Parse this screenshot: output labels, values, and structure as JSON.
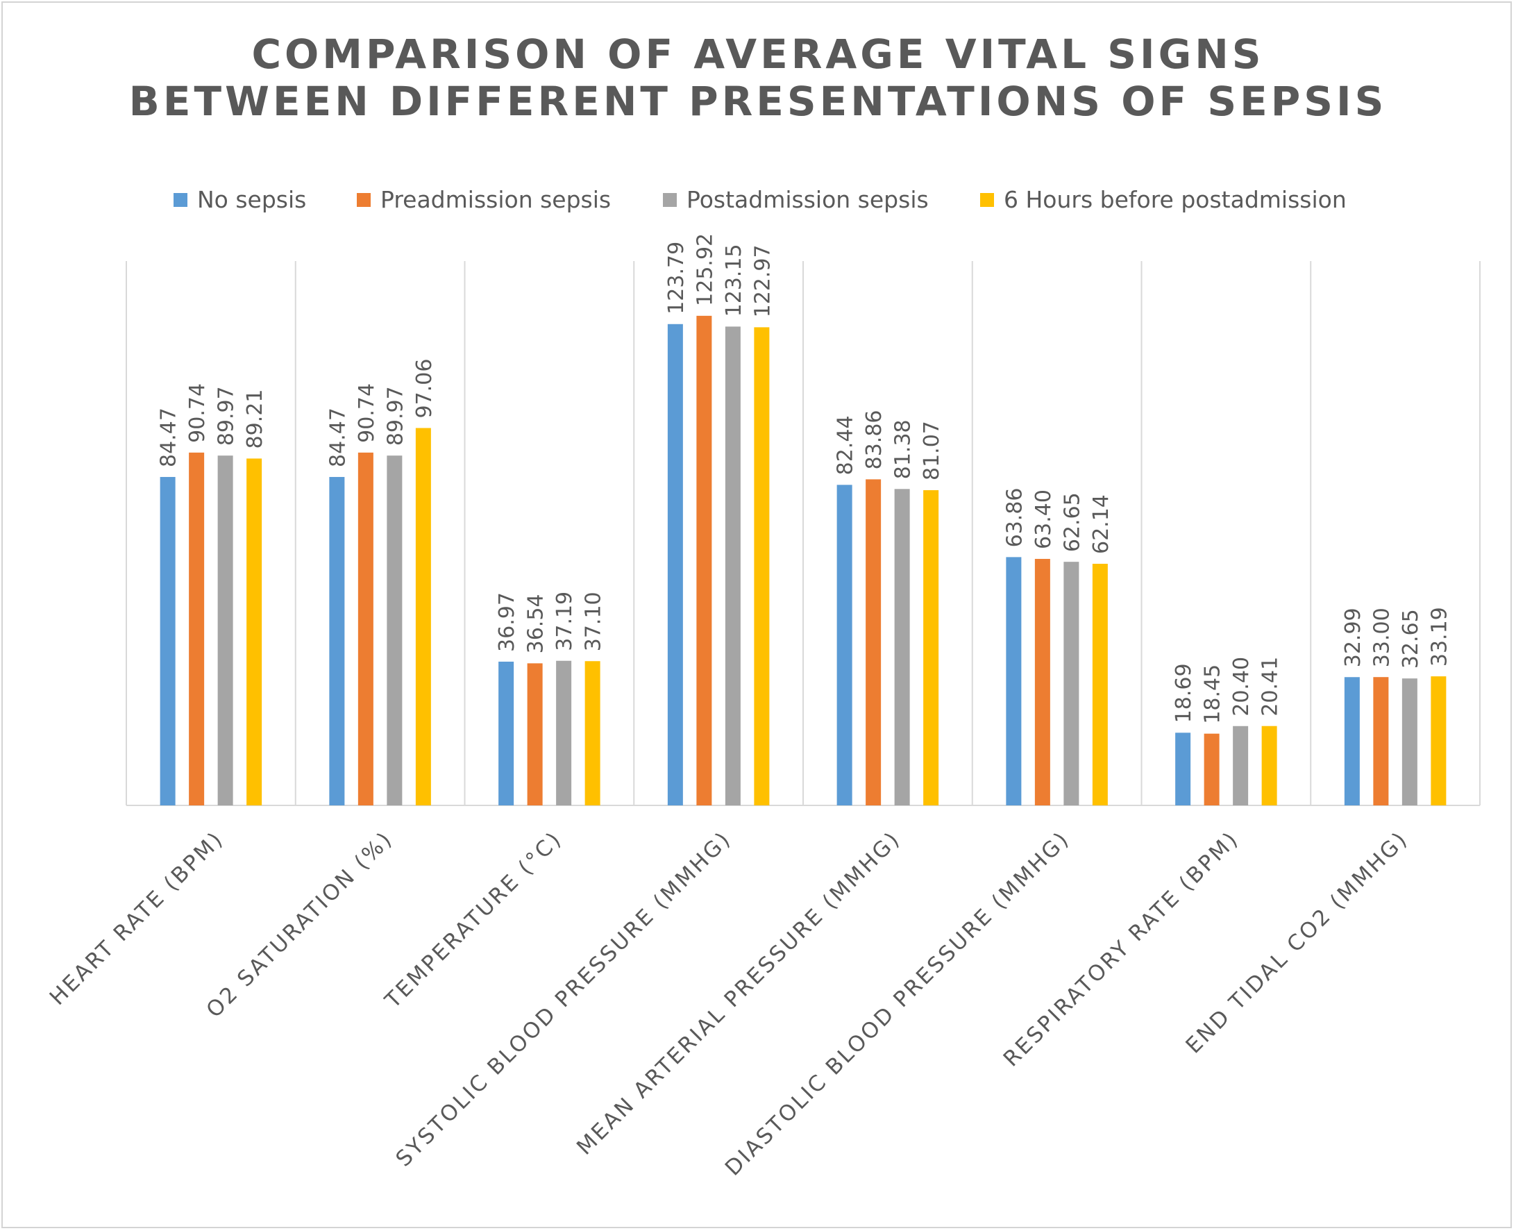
{
  "chart_data": {
    "type": "bar",
    "title_lines": [
      "COMPARISON OF AVERAGE VITAL SIGNS",
      "BETWEEN DIFFERENT PRESENTATIONS OF SEPSIS"
    ],
    "categories": [
      "HEART RATE (BPM)",
      "O2 SATURATION (%)",
      "TEMPERATURE (°C)",
      "SYSTOLIC BLOOD PRESSURE (MMHG)",
      "MEAN ARTERIAL PRESSURE (MMHG)",
      "DIASTOLIC BLOOD PRESSURE (MMHG)",
      "RESPIRATORY RATE (BPM)",
      "END TIDAL CO2 (MMHG)"
    ],
    "series": [
      {
        "name": "No sepsis",
        "color": "#5b9bd5",
        "values": [
          84.47,
          84.47,
          36.97,
          123.79,
          82.44,
          63.86,
          18.69,
          32.99
        ],
        "labels": [
          "84.47",
          "84.47",
          "36.97",
          "123.79",
          "82.44",
          "63.86",
          "18.69",
          "32.99"
        ]
      },
      {
        "name": "Preadmission sepsis",
        "color": "#ed7d31",
        "values": [
          90.74,
          90.74,
          36.54,
          125.92,
          83.86,
          63.4,
          18.45,
          33.0
        ],
        "labels": [
          "90.74",
          "90.74",
          "36.54",
          "125.92",
          "83.86",
          "63.40",
          "18.45",
          "33.00"
        ]
      },
      {
        "name": "Postadmission sepsis",
        "color": "#a5a5a5",
        "values": [
          89.97,
          89.97,
          37.19,
          123.15,
          81.38,
          62.65,
          20.4,
          32.65
        ],
        "labels": [
          "89.97",
          "89.97",
          "37.19",
          "123.15",
          "81.38",
          "62.65",
          "20.40",
          "32.65"
        ]
      },
      {
        "name": "6 Hours before postadmission",
        "color": "#ffc000",
        "values": [
          89.21,
          97.06,
          37.1,
          122.97,
          81.07,
          62.14,
          20.41,
          33.19
        ],
        "labels": [
          "89.21",
          "97.06",
          "37.10",
          "122.97",
          "81.07",
          "62.14",
          "20.41",
          "33.19"
        ]
      }
    ],
    "ylim": [
      0,
      140
    ],
    "y_axis_visible": false,
    "grid": "vertical category separators",
    "legend": "top",
    "data_labels": "rotated, above bars"
  }
}
